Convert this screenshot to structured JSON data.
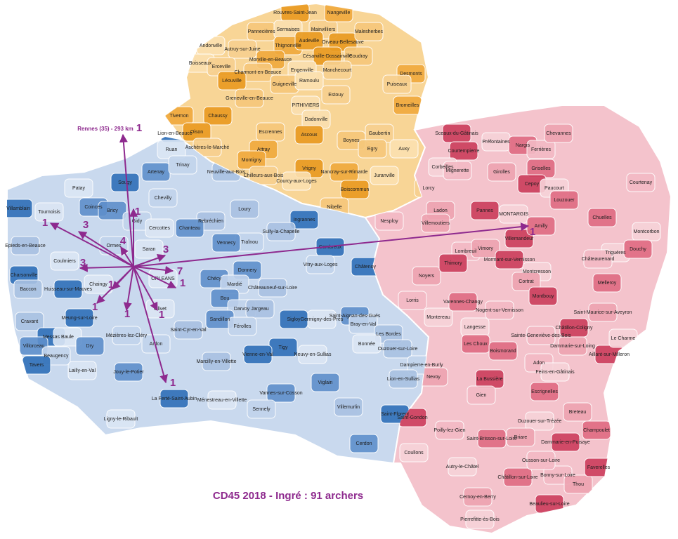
{
  "title": "CD45 2018 - Ingré : 91 archers",
  "rennes_label": "Rennes (35) - 293 km",
  "arrows": [
    {
      "count": 1
    },
    {
      "count": 1
    },
    {
      "count": 1
    },
    {
      "count": 1
    },
    {
      "count": 3
    },
    {
      "count": 4
    },
    {
      "count": 3
    },
    {
      "count": 7
    },
    {
      "count": 1
    },
    {
      "count": 1
    },
    {
      "count": 1
    },
    {
      "count": 1
    },
    {
      "count": 1
    },
    {
      "count": 1
    },
    {
      "count": 3
    }
  ],
  "communes": {
    "north": [
      "Rouvres-Saint-Jean",
      "Pannecières",
      "Sermaises",
      "Mainvilliers",
      "Nangeville",
      "Orveau-Bellesauve",
      "Malesherbes",
      "Andonville",
      "Autruy-sur-Juine",
      "Thignonville",
      "Audeville",
      "Coudray",
      "Boisseaux",
      "Erceville",
      "Morville-en-Beauce",
      "Césarville-Dossainville",
      "Charmont-en-Beauce",
      "Engenville",
      "Manchecourt",
      "Desmonts",
      "Léouville",
      "Guigneville",
      "Ramoulu",
      "Puiseaux",
      "Tivernon",
      "Chaussy",
      "Greneville-en-Beauce",
      "PITHIVIERS",
      "Estouy",
      "Bromeilles",
      "Oison",
      "Escrennes",
      "Dadonville",
      "Gaubertin",
      "Attray",
      "Ascoux",
      "Boynes",
      "Auxy",
      "Aschères-le-Marché",
      "Montigny",
      "Vrigny",
      "Egry",
      "Juranville",
      "Chilleurs-aux-Bois",
      "Nancray-sur-Rimarde",
      "Boiscommun",
      "Nibelle",
      "Courcy-aux-Loges",
      "Lorcy"
    ],
    "west": [
      "Lion-en-Beauce",
      "Ruan",
      "Artenay",
      "Trinay",
      "Neuville-aux-Bois",
      "Sougy",
      "Patay",
      "Coinces",
      "Chevilly",
      "Loury",
      "Villamblain",
      "Tournoisis",
      "Bricy",
      "Gidy",
      "Rebréchien",
      "Ingrannes",
      "Cercottes",
      "Chanteau",
      "Traînou",
      "Sully-la-Chapelle",
      "Combreux",
      "Saran",
      "Vennecy",
      "Ormes",
      "Epieds-en-Beauce",
      "Charsonville",
      "Coulmiers",
      "Donnery",
      "Vitry-aux-Loges",
      "Châteauneuf-sur-Loire",
      "Châtenoy",
      "ORLEANS",
      "Chécy",
      "Mardié",
      "Baccon",
      "Huisseau-sur-Mauves",
      "Chaingy",
      "Bou",
      "Darvoy",
      "Jargeau",
      "Sigloy",
      "Germigny-des-Prés",
      "Saint-Aignan-des-Gués",
      "Bray-en-Val",
      "Cravant",
      "Meung-sur-Loire",
      "Olivet",
      "Sandillon",
      "Férolles",
      "Les Bordes",
      "Messas",
      "Baule",
      "Dry",
      "Mézières-lez-Cléry",
      "Saint-Cyr-en-Val",
      "Tigy",
      "Bonnée",
      "Villorceau",
      "Beaugency",
      "Ouzouer-sur-Loire",
      "Tavers",
      "Lailly-en-Val",
      "Jouy-le-Potier",
      "Ardon",
      "Marcilly-en-Villette",
      "Vienne-en-Val",
      "Neuvy-en-Sullias",
      "Viglain",
      "Dampierre-en-Burly",
      "Lion-en-Sullias",
      "La Ferté-Saint-Aubin",
      "Ménestreau-en-Villette",
      "Vannes-sur-Cosson",
      "Sennely",
      "Villemurlin",
      "Saint-Florent",
      "Ligny-le-Ribault",
      "Cerdon"
    ],
    "east": [
      "Sceaux-du-Gâtinais",
      "Préfontaines",
      "Nargis",
      "Ferrières",
      "Chevannes",
      "Courtempierre",
      "Corbeilles",
      "Griselles",
      "Mignerette",
      "Girolles",
      "Cepoy",
      "Paucourt",
      "Louzouer",
      "Courtenay",
      "Ladon",
      "Pannes",
      "MONTARGIS",
      "Chuelles",
      "Nesploy",
      "Villemoutiers",
      "Villemandeur",
      "Montcorbon",
      "Amilly",
      "Lombreuil",
      "Vimory",
      "Mormant-sur-Vernisson",
      "Triguères",
      "Douchy",
      "Châteaurenard",
      "Noyers",
      "Thimory",
      "Montcresson",
      "Melleroy",
      "Lorris",
      "Cortrat",
      "Montbouy",
      "Montereau",
      "Varennes-Changy",
      "Nogent-sur-Vernisson",
      "Saint-Maurice-sur-Aveyron",
      "Châtillon-Coligny",
      "Langesse",
      "Les Choux",
      "Sainte-Geneviève-des-Bois",
      "Dammarie-sur-Loing",
      "Aillant-sur-Milleron",
      "Le Charme",
      "Boismorand",
      "Adon",
      "Nevoy",
      "La Bussière",
      "Feins-en-Gâtinais",
      "Escrignelles",
      "Gien",
      "Breteau",
      "Saint-Gondon",
      "Ouzouer-sur-Trézée",
      "Champoulet",
      "Poilly-lez-Gien",
      "Briare",
      "Dammarie-en-Puisaye",
      "Coullons",
      "Saint-Brisson-sur-Loire",
      "Bonny-sur-Loire",
      "Thou",
      "Faverelles",
      "Autry-le-Châtel",
      "Châtillon-sur-Loire",
      "Ousson-sur-Loire",
      "Cernoy-en-Berry",
      "Beaulieu-sur-Loire",
      "Pierrefitte-ès-Bois"
    ]
  }
}
